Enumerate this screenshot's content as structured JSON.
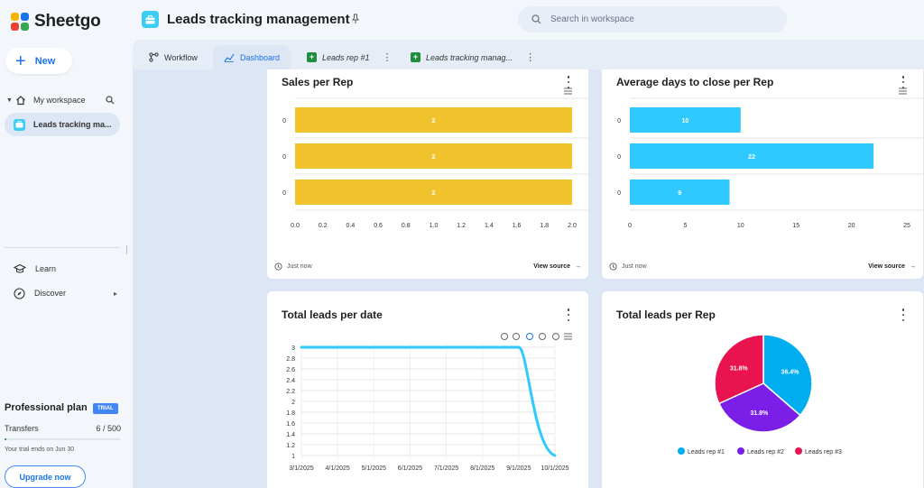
{
  "app": {
    "brand": "Sheetgo",
    "new_label": "New",
    "workspace_label": "My workspace",
    "workspace_item": "Leads tracking ma...",
    "nav": [
      {
        "label": "Learn",
        "icon": "graduation-cap-icon"
      },
      {
        "label": "Discover",
        "icon": "compass-icon"
      }
    ],
    "plan": {
      "title": "Professional plan",
      "badge": "TRIAL",
      "transfers_label": "Transfers",
      "transfers_value": "6 / 500",
      "transfers_used_fraction": 0.012,
      "trial_text": "Your trial ends on Jun 30",
      "upgrade_label": "Upgrade now"
    }
  },
  "header": {
    "title": "Leads tracking management",
    "search_placeholder": "Search in workspace"
  },
  "tabs": [
    {
      "label": "Workflow",
      "icon": "workflow-icon",
      "active": false
    },
    {
      "label": "Dashboard",
      "icon": "chart-line-icon",
      "active": true
    },
    {
      "label": "Leads rep #1",
      "icon": "sheets-icon",
      "active": false
    },
    {
      "label": "Leads tracking manag...",
      "icon": "sheets-icon",
      "active": false
    }
  ],
  "cards": {
    "sales": {
      "title": "Sales per Rep",
      "updated": "Just now",
      "view_source": "View source"
    },
    "avg_days": {
      "title": "Average days to close per Rep",
      "updated": "Just now",
      "view_source": "View source"
    },
    "leads_date": {
      "title": "Total leads per date"
    },
    "leads_rep": {
      "title": "Total leads per Rep"
    }
  },
  "chart_data": [
    {
      "type": "bar",
      "orientation": "horizontal",
      "title": "Sales per Rep",
      "categories": [
        "0",
        "0",
        "0"
      ],
      "values": [
        2,
        2,
        2
      ],
      "xlim": [
        0,
        2
      ],
      "xticks": [
        "0.0",
        "0.2",
        "0.4",
        "0.6",
        "0.8",
        "1.0",
        "1.2",
        "1.4",
        "1.6",
        "1.8",
        "2.0"
      ],
      "color": "#f0c32c",
      "grid": true
    },
    {
      "type": "bar",
      "orientation": "horizontal",
      "title": "Average days to close per Rep",
      "categories": [
        "0",
        "0",
        "0"
      ],
      "values": [
        10,
        22,
        9
      ],
      "xlim": [
        0,
        25
      ],
      "xticks": [
        "0",
        "5",
        "10",
        "15",
        "20",
        "25"
      ],
      "color": "#2ec9ff",
      "grid": true
    },
    {
      "type": "line",
      "title": "Total leads per date",
      "x": [
        "3/1/2025",
        "4/1/2025",
        "5/1/2025",
        "6/1/2025",
        "7/1/2025",
        "8/1/2025",
        "9/1/2025",
        "10/1/2025"
      ],
      "points": [
        {
          "x": "3/1/2025",
          "y": 3
        },
        {
          "x": "9/1/2025",
          "y": 3
        },
        {
          "x": "10/1/2025",
          "y": 1
        }
      ],
      "ylim": [
        1,
        3
      ],
      "yticks": [
        "3",
        "2.8",
        "2.6",
        "2.4",
        "2.2",
        "2",
        "1.8",
        "1.6",
        "1.4",
        "1.2",
        "1"
      ],
      "color": "#2ec9ff",
      "grid": true
    },
    {
      "type": "pie",
      "title": "Total leads per Rep",
      "slices": [
        {
          "label": "Leads rep #1",
          "value": 36.4,
          "display": "36.4%",
          "color": "#00aeef"
        },
        {
          "label": "Leads rep #2",
          "value": 31.8,
          "display": "31.8%",
          "color": "#7a1ee8"
        },
        {
          "label": "Leads rep #3",
          "value": 31.8,
          "display": "31.8%",
          "color": "#e8134f"
        }
      ],
      "legend": "bottom"
    }
  ]
}
